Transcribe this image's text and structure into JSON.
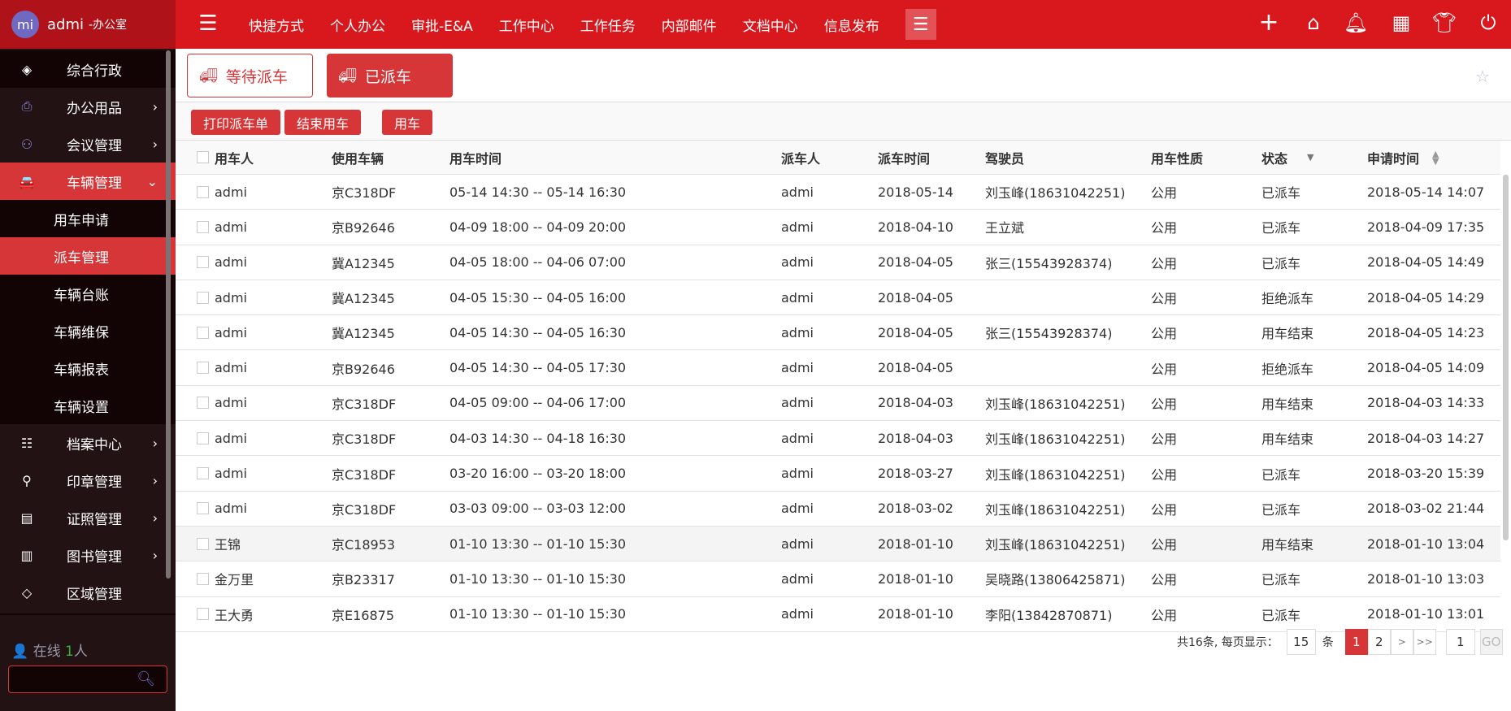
{
  "user": {
    "initials": "mi",
    "name": "admi",
    "dept": "-办公室"
  },
  "sidebar": {
    "items": [
      {
        "label": "综合行政",
        "icon": "layers-icon"
      },
      {
        "label": "办公用品",
        "icon": "printer-icon"
      },
      {
        "label": "会议管理",
        "icon": "meeting-icon"
      },
      {
        "label": "车辆管理",
        "icon": "car-icon"
      },
      {
        "label": "档案中心",
        "icon": "archive-icon"
      },
      {
        "label": "印章管理",
        "icon": "stamp-icon"
      },
      {
        "label": "证照管理",
        "icon": "id-card-icon"
      },
      {
        "label": "图书管理",
        "icon": "book-icon"
      },
      {
        "label": "区域管理",
        "icon": "area-icon"
      }
    ],
    "sub_items": [
      "用车申请",
      "派车管理",
      "车辆台账",
      "车辆维保",
      "车辆报表",
      "车辆设置"
    ],
    "online_label": "在线",
    "online_count": "1",
    "online_unit": "人",
    "search_placeholder": ""
  },
  "topnav": {
    "items": [
      "快捷方式",
      "个人办公",
      "审批-E&A",
      "工作中心",
      "工作任务",
      "内部邮件",
      "文档中心",
      "信息发布"
    ],
    "icons": [
      "plus-icon",
      "home-icon",
      "bell-icon",
      "apps-icon",
      "skin-icon",
      "power-icon"
    ]
  },
  "tabs": [
    {
      "label": "等待派车",
      "active": false
    },
    {
      "label": "已派车",
      "active": true
    }
  ],
  "toolbar": [
    "打印派车单",
    "结束用车",
    "用车"
  ],
  "table": {
    "columns": [
      "用车人",
      "使用车辆",
      "用车时间",
      "派车人",
      "派车时间",
      "驾驶员",
      "用车性质",
      "状态",
      "申请时间"
    ],
    "rows": [
      [
        "admi",
        "京C318DF",
        "05-14 14:30 -- 05-14 16:30",
        "admi",
        "2018-05-14",
        "刘玉峰(18631042251)",
        "公用",
        "已派车",
        "2018-05-14 14:07"
      ],
      [
        "admi",
        "京B92646",
        "04-09 18:00 -- 04-09 20:00",
        "admi",
        "2018-04-10",
        "王立斌",
        "公用",
        "已派车",
        "2018-04-09 17:35"
      ],
      [
        "admi",
        "冀A12345",
        "04-05 18:00 -- 04-06 07:00",
        "admi",
        "2018-04-05",
        "张三(15543928374)",
        "公用",
        "已派车",
        "2018-04-05 14:49"
      ],
      [
        "admi",
        "冀A12345",
        "04-05 15:30 -- 04-05 16:00",
        "admi",
        "2018-04-05",
        "",
        "公用",
        "拒绝派车",
        "2018-04-05 14:29"
      ],
      [
        "admi",
        "冀A12345",
        "04-05 14:30 -- 04-05 16:30",
        "admi",
        "2018-04-05",
        "张三(15543928374)",
        "公用",
        "用车结束",
        "2018-04-05 14:23"
      ],
      [
        "admi",
        "京B92646",
        "04-05 14:30 -- 04-05 17:30",
        "admi",
        "2018-04-05",
        "",
        "公用",
        "拒绝派车",
        "2018-04-05 14:09"
      ],
      [
        "admi",
        "京C318DF",
        "04-05 09:00 -- 04-06 17:00",
        "admi",
        "2018-04-03",
        "刘玉峰(18631042251)",
        "公用",
        "用车结束",
        "2018-04-03 14:33"
      ],
      [
        "admi",
        "京C318DF",
        "04-03 14:30 -- 04-18 16:30",
        "admi",
        "2018-04-03",
        "刘玉峰(18631042251)",
        "公用",
        "用车结束",
        "2018-04-03 14:27"
      ],
      [
        "admi",
        "京C318DF",
        "03-20 16:00 -- 03-20 18:00",
        "admi",
        "2018-03-27",
        "刘玉峰(18631042251)",
        "公用",
        "已派车",
        "2018-03-20 15:39"
      ],
      [
        "admi",
        "京C318DF",
        "03-03 09:00 -- 03-03 12:00",
        "admi",
        "2018-03-02",
        "刘玉峰(18631042251)",
        "公用",
        "已派车",
        "2018-03-02 21:44"
      ],
      [
        "王锦",
        "京C18953",
        "01-10 13:30 -- 01-10 15:30",
        "admi",
        "2018-01-10",
        "刘玉峰(18631042251)",
        "公用",
        "用车结束",
        "2018-01-10 13:04"
      ],
      [
        "金万里",
        "京B23317",
        "01-10 13:30 -- 01-10 15:30",
        "admi",
        "2018-01-10",
        "吴晓路(13806425871)",
        "公用",
        "已派车",
        "2018-01-10 13:03"
      ],
      [
        "王大勇",
        "京E16875",
        "01-10 13:30 -- 01-10 15:30",
        "admi",
        "2018-01-10",
        "李阳(13842870871)",
        "公用",
        "已派车",
        "2018-01-10 13:01"
      ]
    ]
  },
  "pagination": {
    "summary": "共16条, 每页显示：",
    "page_size": "15",
    "unit": "条",
    "pages": [
      "1",
      "2"
    ],
    "next": ">",
    "last": ">>",
    "current": "1",
    "jump_value": "1",
    "go": "GO"
  },
  "colors": {
    "header": "#d9181e",
    "accent": "#d63638",
    "sidebar": "#231213"
  }
}
